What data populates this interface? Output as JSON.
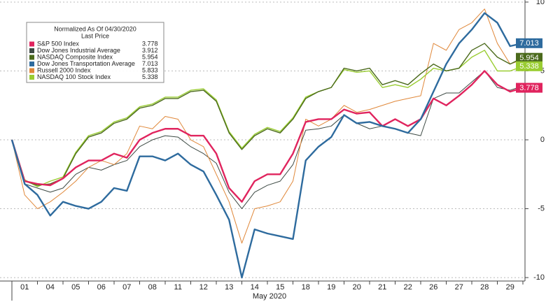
{
  "chart_data": {
    "type": "line",
    "legend_title": "Normalized As Of 04/30/2020",
    "legend_subtitle": "Last Price",
    "xlabel": "May 2020",
    "categories": [
      null,
      "01",
      null,
      "04",
      null,
      "05",
      null,
      "06",
      null,
      "07",
      null,
      "08",
      null,
      "11",
      null,
      "12",
      null,
      "13",
      null,
      "14",
      null,
      "15",
      null,
      "18",
      null,
      "19",
      null,
      "20",
      null,
      "21",
      null,
      "22",
      null,
      "26",
      null,
      "27",
      null,
      "28",
      null,
      "29",
      null
    ],
    "ylim": [
      -10.25,
      10.15
    ],
    "yticks": [
      -10,
      -5,
      0,
      5,
      10
    ],
    "grid": true,
    "legend_position": "upper left",
    "series": [
      {
        "name": "S&P 500 Index",
        "color": "#e0245e",
        "width": 2.4,
        "axis_tag": true,
        "values": [
          0,
          -3.0,
          -3.2,
          -3.3,
          -2.8,
          -2.0,
          -1.5,
          -1.5,
          -1.0,
          -1.3,
          0.0,
          0.5,
          0.8,
          0.8,
          0.3,
          0.3,
          -1.0,
          -3.5,
          -4.5,
          -3.0,
          -2.5,
          -2.5,
          -1.0,
          1.3,
          1.5,
          1.5,
          2.2,
          1.9,
          2.0,
          1.0,
          1.5,
          1.0,
          1.5,
          3.0,
          2.5,
          3.2,
          4.0,
          5.0,
          4.0,
          3.5,
          3.778
        ]
      },
      {
        "name": "Dow Jones Industrial Average",
        "color": "#3d4a44",
        "width": 1,
        "axis_tag": false,
        "values": [
          0,
          -3.2,
          -3.5,
          -3.8,
          -3.5,
          -2.5,
          -2.0,
          -2.2,
          -1.8,
          -1.5,
          -0.5,
          0.0,
          0.3,
          0.2,
          -0.5,
          -1.0,
          -1.7,
          -3.8,
          -5.0,
          -3.8,
          -3.3,
          -3.0,
          -1.8,
          0.7,
          0.8,
          1.0,
          1.8,
          1.2,
          0.8,
          1.0,
          0.8,
          0.5,
          0.3,
          3.0,
          3.4,
          3.4,
          4.2,
          5.0,
          3.8,
          3.6,
          3.912
        ]
      },
      {
        "name": "NASDAQ Composite Index",
        "color": "#4b6a1c",
        "width": 1.4,
        "axis_tag": true,
        "values": [
          0,
          -3.0,
          -3.3,
          -3.2,
          -2.8,
          -1.0,
          0.2,
          0.5,
          1.2,
          1.5,
          2.3,
          2.5,
          3.0,
          3.0,
          3.5,
          3.6,
          2.8,
          0.5,
          -0.7,
          0.3,
          0.8,
          0.5,
          1.5,
          3.0,
          3.5,
          3.8,
          5.2,
          5.0,
          5.2,
          4.0,
          4.3,
          4.0,
          4.8,
          5.5,
          5.0,
          5.2,
          6.5,
          7.0,
          6.0,
          5.5,
          5.954
        ]
      },
      {
        "name": "Dow Jones Transportation Average",
        "color": "#2e6b9e",
        "width": 2.4,
        "axis_tag": true,
        "values": [
          0,
          -3.2,
          -4.0,
          -5.5,
          -4.5,
          -4.8,
          -5.0,
          -4.5,
          -3.5,
          -3.7,
          -1.2,
          -1.2,
          -1.5,
          -1.0,
          -1.8,
          -2.3,
          -4.0,
          -5.8,
          -10.0,
          -6.5,
          -6.8,
          -7.0,
          -7.2,
          -1.5,
          -0.5,
          0.2,
          1.8,
          1.2,
          1.3,
          1.0,
          0.8,
          0.5,
          1.5,
          3.5,
          5.5,
          7.0,
          8.0,
          9.2,
          8.5,
          6.8,
          7.013
        ]
      },
      {
        "name": "Russell 2000 Index",
        "color": "#e0883a",
        "width": 1,
        "axis_tag": false,
        "values": [
          0,
          -4.0,
          -5.0,
          -4.5,
          -3.8,
          -3.0,
          -2.0,
          -1.5,
          -1.8,
          -1.0,
          1.0,
          0.8,
          1.7,
          1.5,
          0.0,
          -0.5,
          -2.5,
          -4.5,
          -7.5,
          -5.0,
          -4.8,
          -4.5,
          -3.0,
          1.5,
          1.0,
          1.5,
          2.5,
          2.0,
          2.2,
          2.5,
          2.8,
          3.0,
          3.2,
          7.0,
          6.5,
          8.0,
          8.5,
          9.5,
          7.0,
          5.5,
          5.833
        ]
      },
      {
        "name": "NASDAQ 100 Stock Index",
        "color": "#9acd32",
        "width": 1.4,
        "axis_tag": true,
        "values": [
          0,
          -2.9,
          -3.4,
          -3.0,
          -2.7,
          -0.9,
          0.3,
          0.6,
          1.3,
          1.6,
          2.4,
          2.6,
          3.1,
          3.1,
          3.6,
          3.7,
          2.9,
          0.6,
          -0.6,
          0.4,
          0.9,
          0.6,
          1.6,
          3.1,
          3.5,
          3.8,
          5.1,
          4.9,
          5.0,
          3.8,
          4.0,
          3.8,
          4.4,
          5.2,
          5.0,
          5.2,
          6.0,
          6.5,
          5.0,
          5.0,
          5.338
        ]
      }
    ]
  }
}
